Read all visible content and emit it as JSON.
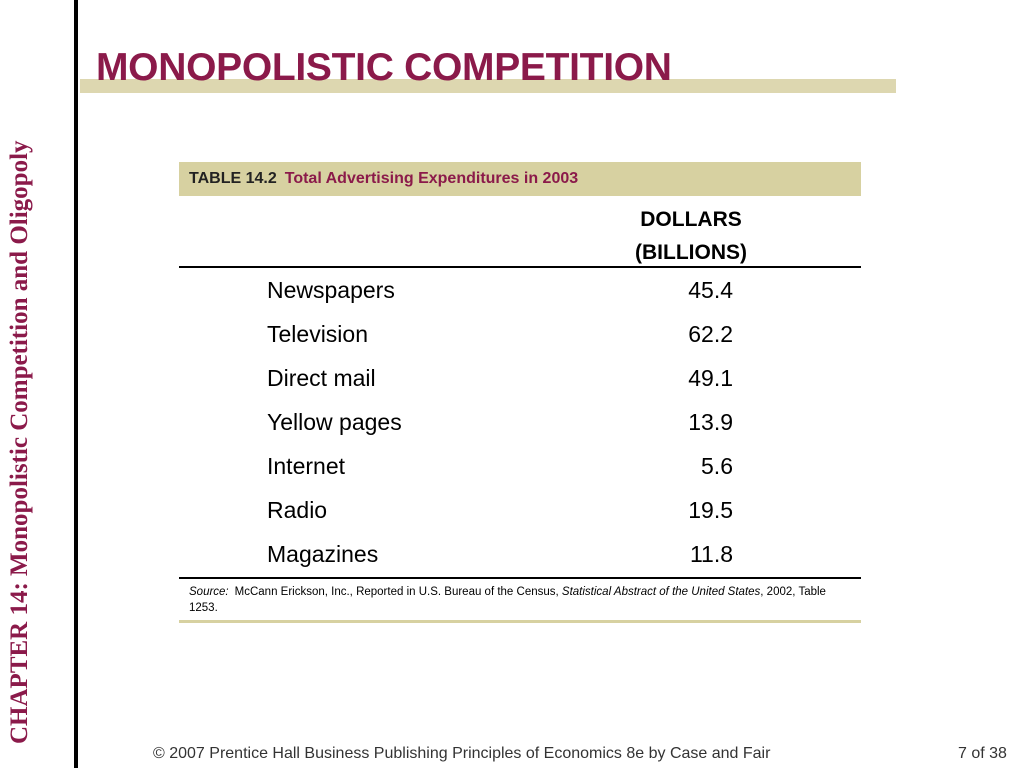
{
  "side_title": "CHAPTER 14:  Monopolistic Competition and Oligopoly",
  "title": "MONOPOLISTIC COMPETITION",
  "table": {
    "number": "TABLE 14.2",
    "caption": "Total Advertising Expenditures in 2003",
    "column_header_line1": "DOLLARS",
    "column_header_line2": "(BILLIONS)",
    "rows": [
      {
        "category": "Newspapers",
        "value": "45.4"
      },
      {
        "category": "Television",
        "value": "62.2"
      },
      {
        "category": "Direct mail",
        "value": "49.1"
      },
      {
        "category": "Yellow pages",
        "value": "13.9"
      },
      {
        "category": "Internet",
        "value": "5.6"
      },
      {
        "category": "Radio",
        "value": "19.5"
      },
      {
        "category": "Magazines",
        "value": "11.8"
      }
    ],
    "source_label": "Source:",
    "source_text_1": "McCann Erickson, Inc., Reported in U.S. Bureau of the Census,",
    "source_pub": "Statistical Abstract of the United States",
    "source_text_2": ", 2002, Table 1253."
  },
  "footer": {
    "copyright": "© 2007 Prentice Hall Business Publishing   Principles of Economics 8e by Case and Fair",
    "page": "7 of 38"
  },
  "colors": {
    "accent": "#8b1a4a",
    "band": "#d7d1a1"
  }
}
